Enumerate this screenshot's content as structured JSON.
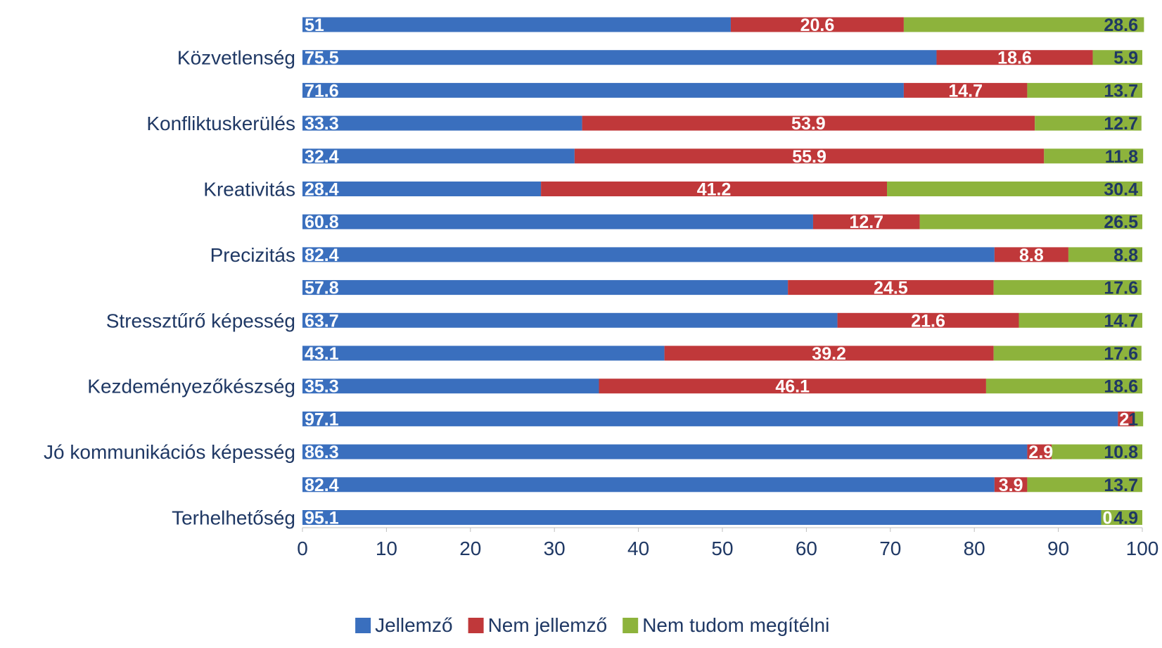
{
  "chart_data": {
    "type": "bar",
    "orientation": "horizontal",
    "stacked": true,
    "title": "",
    "xlabel": "",
    "ylabel": "",
    "xlim": [
      0,
      100
    ],
    "xticks": [
      0,
      10,
      20,
      30,
      40,
      50,
      60,
      70,
      80,
      90,
      100
    ],
    "grid": false,
    "legend_position": "bottom",
    "categories": [
      "",
      "Közvetlenség",
      "",
      "Konfliktuskerülés",
      "",
      "Kreativitás",
      "",
      "Precizitás",
      "",
      "Stressztűrő képesség",
      "",
      "Kezdeményezőkészség",
      "",
      "Jó kommunikációs képesség",
      "",
      "Terhelhetőség"
    ],
    "series": [
      {
        "name": "Jellemző",
        "color": "#3a6fbe",
        "values": [
          51,
          75.5,
          71.6,
          33.3,
          32.4,
          28.4,
          60.8,
          82.4,
          57.8,
          63.7,
          43.1,
          35.3,
          97.1,
          86.3,
          82.4,
          95.1
        ]
      },
      {
        "name": "Nem jellemző",
        "color": "#c0383a",
        "values": [
          20.6,
          18.6,
          14.7,
          53.9,
          55.9,
          41.2,
          12.7,
          8.8,
          24.5,
          21.6,
          39.2,
          46.1,
          2,
          2.9,
          3.9,
          0
        ]
      },
      {
        "name": "Nem tudom megítélni",
        "color": "#8db33c",
        "values": [
          28.6,
          5.9,
          13.7,
          12.7,
          11.8,
          30.4,
          26.5,
          8.8,
          17.6,
          14.7,
          17.6,
          18.6,
          1,
          10.8,
          13.7,
          4.9
        ]
      }
    ]
  }
}
